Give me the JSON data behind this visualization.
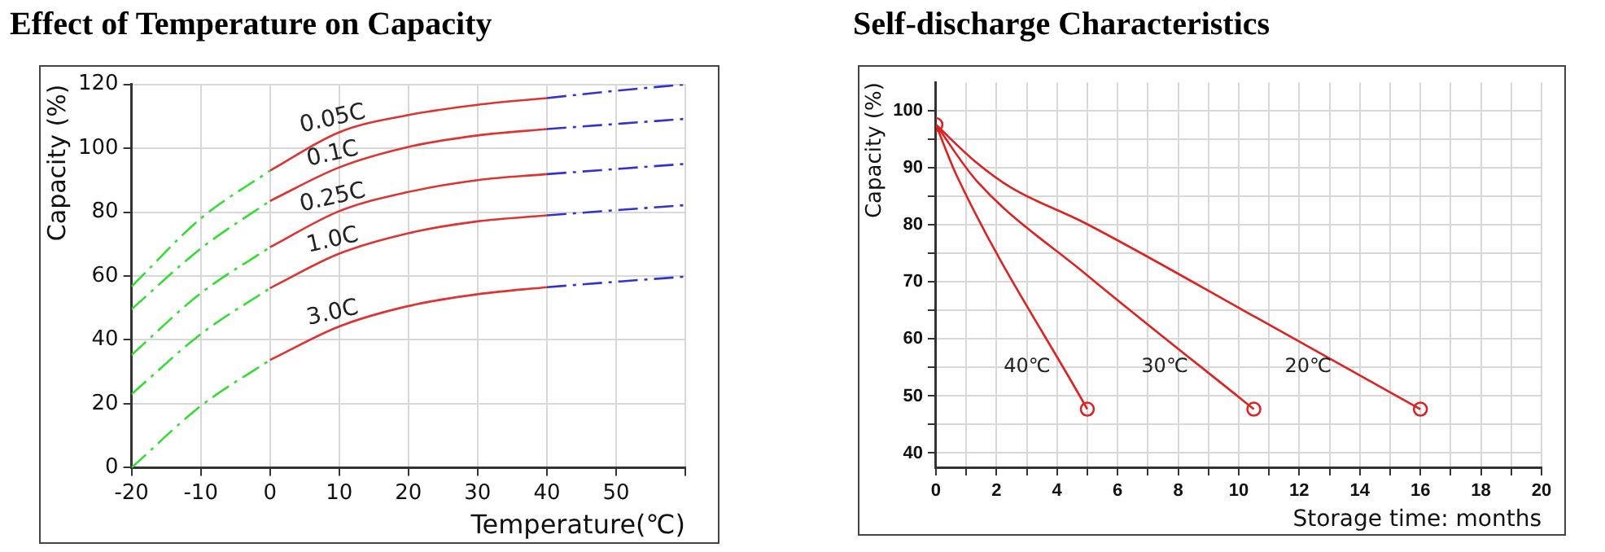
{
  "chart_data": [
    {
      "type": "line",
      "title": "Effect of Temperature on Capacity",
      "xlabel": "Temperature(℃)",
      "ylabel": "Capacity (%)",
      "xlim": [
        -20,
        60
      ],
      "xticks": [
        -20,
        -10,
        0,
        10,
        20,
        30,
        40,
        50,
        {
          "value": 60,
          "label": null
        }
      ],
      "ylim": [
        0,
        120
      ],
      "yticks": [
        0,
        20,
        40,
        60,
        80,
        100,
        120
      ],
      "grid": true,
      "legend": false,
      "series": [
        {
          "color": "#33dd33",
          "line_style": "dashed",
          "x": [
            -20,
            -10,
            0
          ],
          "values": [
            56.7,
            78,
            93
          ]
        },
        {
          "name": "0.05C",
          "color": "#dd3333",
          "line_style": "solid",
          "x": [
            0,
            10,
            20,
            30,
            40
          ],
          "values": [
            93,
            105,
            110.4,
            113.6,
            115.7
          ]
        },
        {
          "color": "#3333cc",
          "line_style": "dashed",
          "x": [
            40,
            50,
            60
          ],
          "values": [
            115.7,
            118,
            120
          ]
        },
        {
          "color": "#33dd33",
          "line_style": "dashed",
          "x": [
            -20,
            -10,
            0
          ],
          "values": [
            49.6,
            68.6,
            83.5
          ]
        },
        {
          "name": "0.1C",
          "color": "#dd3333",
          "line_style": "solid",
          "x": [
            0,
            10,
            20,
            30,
            40
          ],
          "values": [
            83.5,
            94,
            100.4,
            104,
            106
          ]
        },
        {
          "color": "#3333cc",
          "line_style": "dashed",
          "x": [
            40,
            50,
            60
          ],
          "values": [
            106,
            107.6,
            109.2
          ]
        },
        {
          "color": "#33dd33",
          "line_style": "dashed",
          "x": [
            -20,
            -10,
            0
          ],
          "values": [
            35.3,
            54.6,
            69
          ]
        },
        {
          "name": "0.25C",
          "color": "#dd3333",
          "line_style": "solid",
          "x": [
            0,
            10,
            20,
            30,
            40
          ],
          "values": [
            69,
            80.3,
            86.3,
            90,
            91.9
          ]
        },
        {
          "color": "#3333cc",
          "line_style": "dashed",
          "x": [
            40,
            50,
            60
          ],
          "values": [
            91.9,
            93.5,
            95.1
          ]
        },
        {
          "color": "#33dd33",
          "line_style": "dashed",
          "x": [
            -20,
            -10,
            0
          ],
          "values": [
            23,
            41.8,
            56.2
          ]
        },
        {
          "name": "1.0C",
          "color": "#dd3333",
          "line_style": "solid",
          "x": [
            0,
            10,
            20,
            30,
            40
          ],
          "values": [
            56.2,
            67,
            73.4,
            77.1,
            79
          ]
        },
        {
          "color": "#3333cc",
          "line_style": "dashed",
          "x": [
            40,
            50,
            60
          ],
          "values": [
            79,
            80.6,
            82.2
          ]
        },
        {
          "color": "#33dd33",
          "line_style": "dashed",
          "x": [
            -20,
            -10,
            0
          ],
          "values": [
            0,
            19.3,
            33.7
          ]
        },
        {
          "name": "3.0C",
          "color": "#dd3333",
          "line_style": "solid",
          "x": [
            0,
            10,
            20,
            30,
            40
          ],
          "values": [
            33.7,
            44.2,
            50.6,
            54.3,
            56.5
          ]
        },
        {
          "color": "#3333cc",
          "line_style": "dashed",
          "x": [
            40,
            50,
            60
          ],
          "values": [
            56.5,
            58.2,
            59.8
          ]
        }
      ]
    },
    {
      "type": "line",
      "title": "Self-discharge Characteristics",
      "xlabel": "Storage time: months",
      "ylabel": "Capacity (%)",
      "xlim": [
        0,
        20
      ],
      "xticks": [
        0,
        {
          "value": 1,
          "label": null
        },
        2,
        {
          "value": 3,
          "label": null
        },
        4,
        {
          "value": 5,
          "label": null
        },
        6,
        {
          "value": 7,
          "label": null
        },
        8,
        {
          "value": 9,
          "label": null
        },
        10,
        {
          "value": 11,
          "label": null
        },
        12,
        {
          "value": 13,
          "label": null
        },
        14,
        {
          "value": 15,
          "label": null
        },
        16,
        {
          "value": 17,
          "label": null
        },
        18,
        {
          "value": 19,
          "label": null
        },
        20
      ],
      "ylim": [
        37.5,
        105
      ],
      "yticks": [
        40,
        {
          "value": 45,
          "label": null
        },
        50,
        {
          "value": 55,
          "label": null
        },
        60,
        {
          "value": 65,
          "label": null
        },
        70,
        {
          "value": 75,
          "label": null
        },
        80,
        {
          "value": 85,
          "label": null
        },
        90,
        {
          "value": 95,
          "label": null
        },
        100
      ],
      "grid": true,
      "legend": false,
      "series": [
        {
          "name": "40℃",
          "color": "#dd2222",
          "line_style": "solid",
          "x": [
            0,
            0.7,
            5
          ],
          "values": [
            97.6,
            88.5,
            47.7
          ]
        },
        {
          "name": "30℃",
          "color": "#dd2222",
          "line_style": "solid",
          "x": [
            0,
            1.35,
            4.9,
            10.5
          ],
          "values": [
            97.6,
            87.7,
            71.6,
            47.7
          ]
        },
        {
          "name": "20℃",
          "color": "#dd2222",
          "line_style": "solid",
          "x": [
            0,
            1.26,
            2.47,
            4.9,
            10.6,
            16
          ],
          "values": [
            97.6,
            91.3,
            86.6,
            80.4,
            63.7,
            47.7
          ]
        },
        {
          "type": "scatter",
          "marker": "circle",
          "color": "#dd2222",
          "x": [
            0,
            5,
            10.5,
            16
          ],
          "values": [
            97.6,
            47.7,
            47.7,
            47.7
          ]
        }
      ]
    }
  ]
}
